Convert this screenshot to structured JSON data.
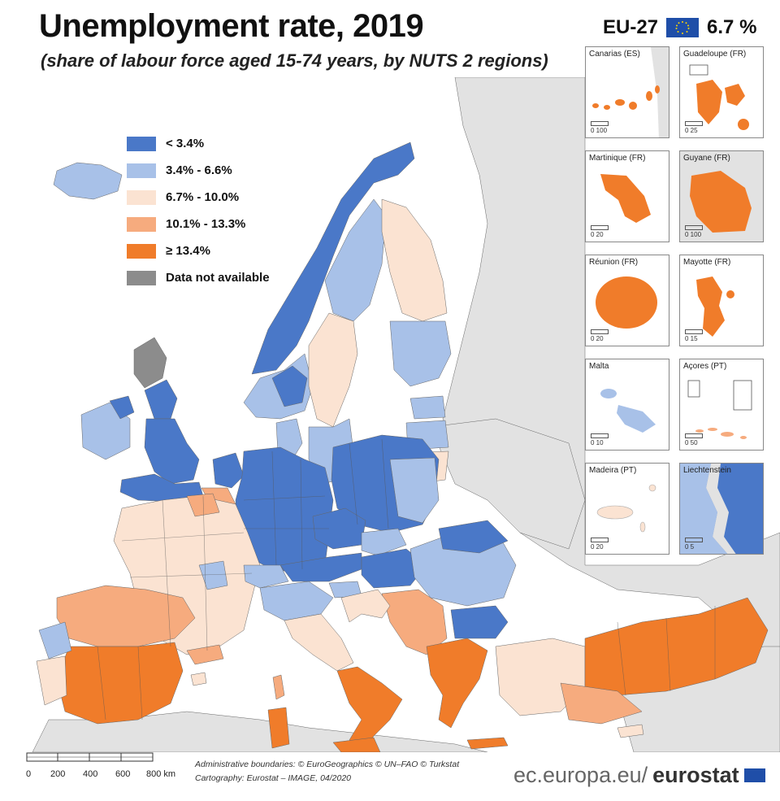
{
  "header": {
    "title": "Unemployment rate, 2019",
    "subtitle": "(share of labour force aged 15-74 years, by NUTS 2 regions)",
    "eu_label": "EU-27",
    "eu_value": "6.7 %"
  },
  "colors": {
    "c1": "#4a78c8",
    "c2": "#a8c1e8",
    "c3": "#fbe3d2",
    "c4": "#f6ab7e",
    "c5": "#f07c2a",
    "na": "#8c8c8c",
    "nonEU": "#e2e2e2",
    "sea": "#ffffff",
    "eu_blue": "#1f4ea8"
  },
  "legend": {
    "items": [
      {
        "label": "< 3.4%",
        "color": "#4a78c8"
      },
      {
        "label": "3.4% - 6.6%",
        "color": "#a8c1e8"
      },
      {
        "label": "6.7% - 10.0%",
        "color": "#fbe3d2"
      },
      {
        "label": "10.1% - 13.3%",
        "color": "#f6ab7e"
      },
      {
        "label": "≥ 13.4%",
        "color": "#f07c2a"
      },
      {
        "label": "Data not available",
        "color": "#8c8c8c"
      }
    ]
  },
  "insets": [
    {
      "name": "Canarias (ES)",
      "scale": "0   100"
    },
    {
      "name": "Guadeloupe (FR)",
      "scale": "0   25"
    },
    {
      "name": "Martinique (FR)",
      "scale": "0   20"
    },
    {
      "name": "Guyane (FR)",
      "scale": "0   100"
    },
    {
      "name": "Réunion (FR)",
      "scale": "0   20"
    },
    {
      "name": "Mayotte (FR)",
      "scale": "0   15"
    },
    {
      "name": "Malta",
      "scale": "0   10"
    },
    {
      "name": "Açores (PT)",
      "scale": "0   50"
    },
    {
      "name": "Madeira (PT)",
      "scale": "0   20"
    },
    {
      "name": "Liechtenstein",
      "scale": "0   5"
    }
  ],
  "scale_bar": {
    "ticks": [
      "0",
      "200",
      "400",
      "600",
      "800 km"
    ]
  },
  "credits": {
    "line1": "Administrative boundaries: © EuroGeographics © UN–FAO © Turkstat",
    "line2": "Cartography: Eurostat – IMAGE, 04/2020"
  },
  "branding": {
    "prefix": "ec.europa.eu/",
    "name": "eurostat"
  }
}
